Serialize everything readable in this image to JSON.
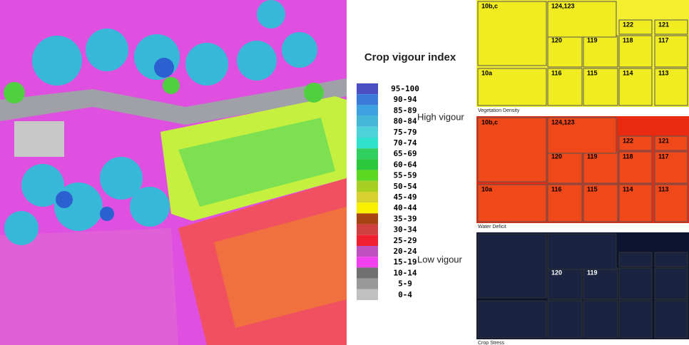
{
  "legend": {
    "title": "Crop vigour index",
    "entries": [
      {
        "label": "95-100",
        "color": "#4a50c4"
      },
      {
        "label": "90-94",
        "color": "#3a7ad8"
      },
      {
        "label": "85-89",
        "color": "#3fa2e0"
      },
      {
        "label": "80-84",
        "color": "#44b6d6"
      },
      {
        "label": "75-79",
        "color": "#4ed2da"
      },
      {
        "label": "70-74",
        "color": "#30e2cc"
      },
      {
        "label": "65-69",
        "color": "#30d060"
      },
      {
        "label": "60-64",
        "color": "#2cc83c"
      },
      {
        "label": "55-59",
        "color": "#5cd820"
      },
      {
        "label": "50-54",
        "color": "#a8d024"
      },
      {
        "label": "45-49",
        "color": "#d6d030"
      },
      {
        "label": "40-44",
        "color": "#f8f000"
      },
      {
        "label": "35-39",
        "color": "#a84412"
      },
      {
        "label": "30-34",
        "color": "#d04040"
      },
      {
        "label": "25-29",
        "color": "#f02030"
      },
      {
        "label": "20-24",
        "color": "#c050c0"
      },
      {
        "label": "15-19",
        "color": "#f040f0"
      },
      {
        "label": "10-14",
        "color": "#707070"
      },
      {
        "label": "5-9",
        "color": "#989898"
      },
      {
        "label": "0-4",
        "color": "#c0c0c0"
      }
    ],
    "high": "High vigour",
    "low": "Low vigour"
  },
  "panels": [
    {
      "caption": "Vegetation Density",
      "background": "#f4f030",
      "field_color": "#f0ec20",
      "label_color": "#000000",
      "plots": [
        "10b,c",
        "124,123",
        "122",
        "121",
        "120",
        "119",
        "118",
        "117",
        "10a",
        "116",
        "115",
        "114",
        "113"
      ]
    },
    {
      "caption": "Water Deficit",
      "background": "#e82a10",
      "field_color": "#f04818",
      "label_color": "#000000",
      "plots": [
        "10b,c",
        "124,123",
        "122",
        "121",
        "120",
        "119",
        "118",
        "117",
        "10a",
        "116",
        "115",
        "114",
        "113"
      ]
    },
    {
      "caption": "Crop Stress",
      "background": "#0c1430",
      "field_color": "#1a2440",
      "label_color": "#ffffff",
      "plots": [
        "120",
        "119"
      ]
    }
  ]
}
